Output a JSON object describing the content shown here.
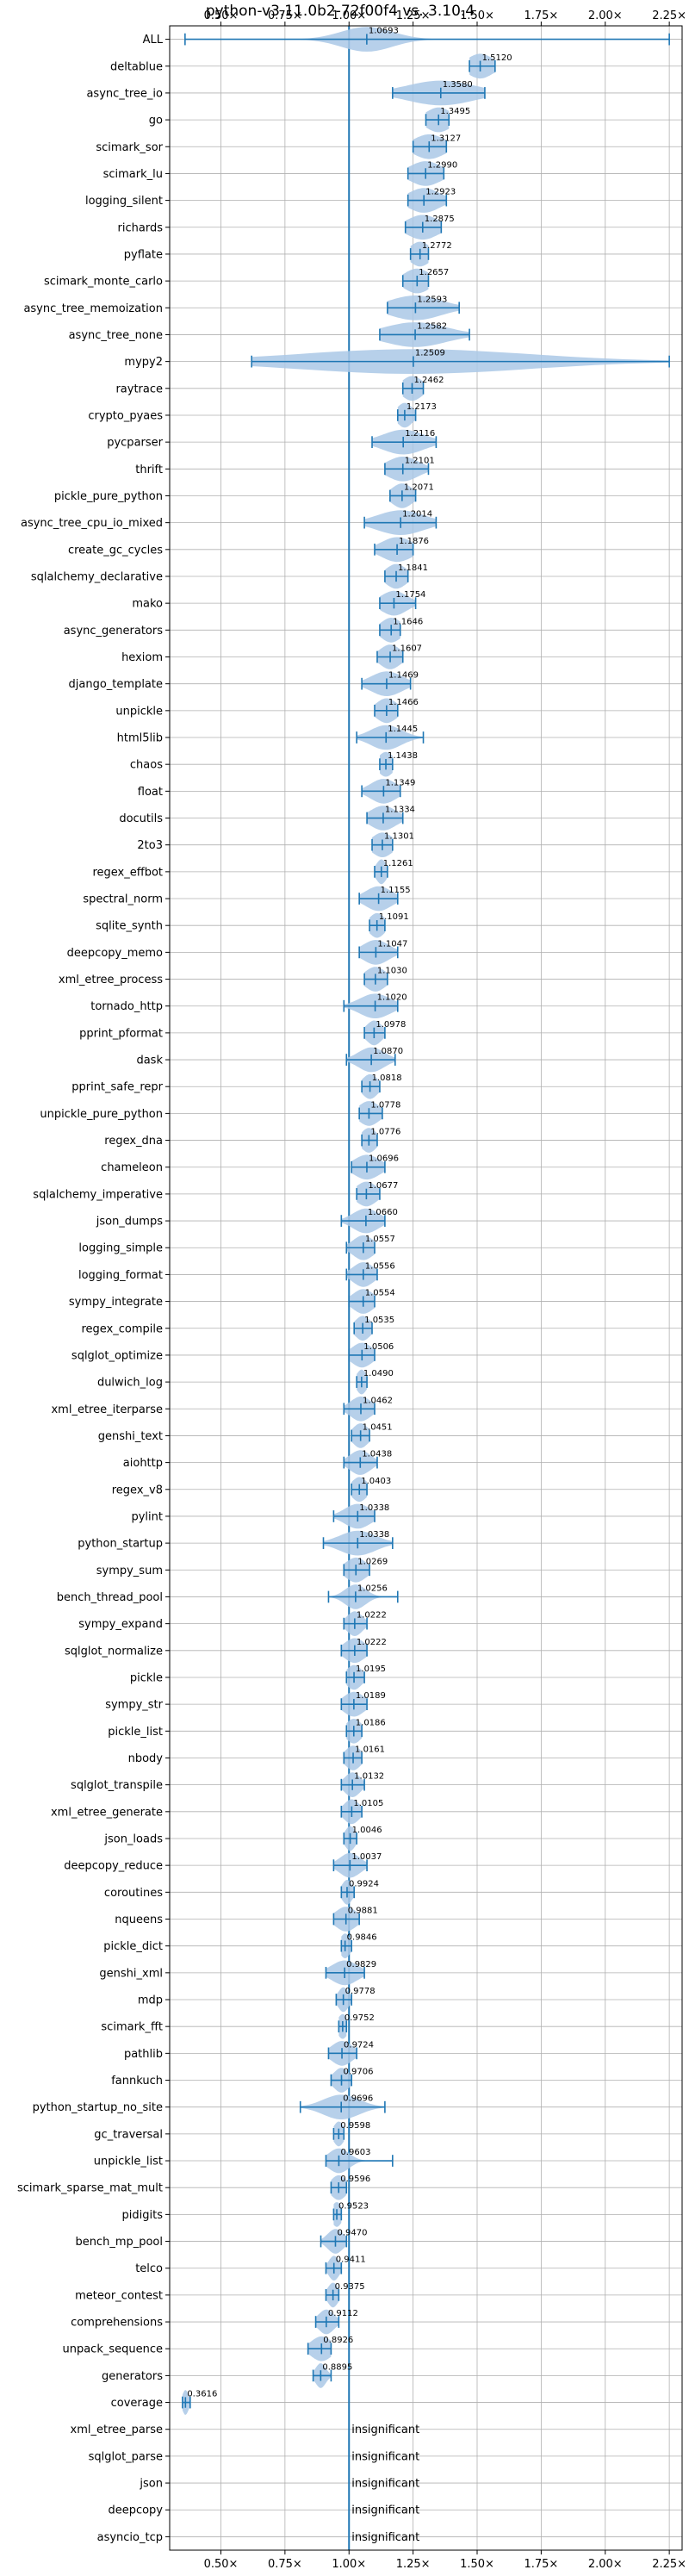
{
  "chart_data": {
    "type": "violin",
    "title": "python-v3.11.0b2-72f00f4 vs. 3.10.4",
    "xlim": [
      0.3,
      2.3
    ],
    "xticks": [
      0.5,
      0.75,
      1.0,
      1.25,
      1.5,
      1.75,
      2.0,
      2.25
    ],
    "xtick_labels": [
      "0.50×",
      "0.75×",
      "1.00×",
      "1.25×",
      "1.50×",
      "1.75×",
      "2.00×",
      "2.25×"
    ],
    "reference_line": 1.0,
    "grid": true,
    "insignificant_label": "insignificant",
    "benchmarks": [
      {
        "name": "ALL",
        "value": 1.0693,
        "label": "1.0693",
        "min": 0.36,
        "max": 2.25,
        "spread": 0.1
      },
      {
        "name": "deltablue",
        "value": 1.512,
        "label": "1.5120",
        "min": 1.47,
        "max": 1.57,
        "spread": 0.05
      },
      {
        "name": "async_tree_io",
        "value": 1.358,
        "label": "1.3580",
        "min": 1.17,
        "max": 1.53,
        "spread": 0.13
      },
      {
        "name": "go",
        "value": 1.3495,
        "label": "1.3495",
        "min": 1.3,
        "max": 1.39,
        "spread": 0.05
      },
      {
        "name": "scimark_sor",
        "value": 1.3127,
        "label": "1.3127",
        "min": 1.25,
        "max": 1.38,
        "spread": 0.06
      },
      {
        "name": "scimark_lu",
        "value": 1.299,
        "label": "1.2990",
        "min": 1.23,
        "max": 1.37,
        "spread": 0.06
      },
      {
        "name": "logging_silent",
        "value": 1.2923,
        "label": "1.2923",
        "min": 1.23,
        "max": 1.38,
        "spread": 0.06
      },
      {
        "name": "richards",
        "value": 1.2875,
        "label": "1.2875",
        "min": 1.22,
        "max": 1.36,
        "spread": 0.06
      },
      {
        "name": "pyflate",
        "value": 1.2772,
        "label": "1.2772",
        "min": 1.24,
        "max": 1.31,
        "spread": 0.04
      },
      {
        "name": "scimark_monte_carlo",
        "value": 1.2657,
        "label": "1.2657",
        "min": 1.21,
        "max": 1.31,
        "spread": 0.05
      },
      {
        "name": "async_tree_memoization",
        "value": 1.2593,
        "label": "1.2593",
        "min": 1.15,
        "max": 1.43,
        "spread": 0.1
      },
      {
        "name": "async_tree_none",
        "value": 1.2582,
        "label": "1.2582",
        "min": 1.12,
        "max": 1.47,
        "spread": 0.12
      },
      {
        "name": "mypy2",
        "value": 1.2509,
        "label": "1.2509",
        "min": 0.62,
        "max": 2.25,
        "spread": 0.45
      },
      {
        "name": "raytrace",
        "value": 1.2462,
        "label": "1.2462",
        "min": 1.21,
        "max": 1.29,
        "spread": 0.04
      },
      {
        "name": "crypto_pyaes",
        "value": 1.2173,
        "label": "1.2173",
        "min": 1.19,
        "max": 1.26,
        "spread": 0.03
      },
      {
        "name": "pycparser",
        "value": 1.2116,
        "label": "1.2116",
        "min": 1.09,
        "max": 1.34,
        "spread": 0.08
      },
      {
        "name": "thrift",
        "value": 1.2101,
        "label": "1.2101",
        "min": 1.14,
        "max": 1.31,
        "spread": 0.06
      },
      {
        "name": "pickle_pure_python",
        "value": 1.2071,
        "label": "1.2071",
        "min": 1.16,
        "max": 1.26,
        "spread": 0.04
      },
      {
        "name": "async_tree_cpu_io_mixed",
        "value": 1.2014,
        "label": "1.2014",
        "min": 1.06,
        "max": 1.34,
        "spread": 0.09
      },
      {
        "name": "create_gc_cycles",
        "value": 1.1876,
        "label": "1.1876",
        "min": 1.1,
        "max": 1.25,
        "spread": 0.06
      },
      {
        "name": "sqlalchemy_declarative",
        "value": 1.1841,
        "label": "1.1841",
        "min": 1.14,
        "max": 1.23,
        "spread": 0.04
      },
      {
        "name": "mako",
        "value": 1.1754,
        "label": "1.1754",
        "min": 1.12,
        "max": 1.26,
        "spread": 0.05
      },
      {
        "name": "async_generators",
        "value": 1.1646,
        "label": "1.1646",
        "min": 1.12,
        "max": 1.2,
        "spread": 0.04
      },
      {
        "name": "hexiom",
        "value": 1.1607,
        "label": "1.1607",
        "min": 1.11,
        "max": 1.21,
        "spread": 0.04
      },
      {
        "name": "django_template",
        "value": 1.1469,
        "label": "1.1469",
        "min": 1.05,
        "max": 1.24,
        "spread": 0.06
      },
      {
        "name": "unpickle",
        "value": 1.1466,
        "label": "1.1466",
        "min": 1.1,
        "max": 1.19,
        "spread": 0.04
      },
      {
        "name": "html5lib",
        "value": 1.1445,
        "label": "1.1445",
        "min": 1.03,
        "max": 1.29,
        "spread": 0.06
      },
      {
        "name": "chaos",
        "value": 1.1438,
        "label": "1.1438",
        "min": 1.12,
        "max": 1.17,
        "spread": 0.03
      },
      {
        "name": "float",
        "value": 1.1349,
        "label": "1.1349",
        "min": 1.05,
        "max": 1.2,
        "spread": 0.05
      },
      {
        "name": "docutils",
        "value": 1.1334,
        "label": "1.1334",
        "min": 1.07,
        "max": 1.21,
        "spread": 0.05
      },
      {
        "name": "2to3",
        "value": 1.1301,
        "label": "1.1301",
        "min": 1.09,
        "max": 1.17,
        "spread": 0.04
      },
      {
        "name": "regex_effbot",
        "value": 1.1261,
        "label": "1.1261",
        "min": 1.1,
        "max": 1.15,
        "spread": 0.02
      },
      {
        "name": "spectral_norm",
        "value": 1.1155,
        "label": "1.1155",
        "min": 1.04,
        "max": 1.19,
        "spread": 0.05
      },
      {
        "name": "sqlite_synth",
        "value": 1.1091,
        "label": "1.1091",
        "min": 1.08,
        "max": 1.14,
        "spread": 0.03
      },
      {
        "name": "deepcopy_memo",
        "value": 1.1047,
        "label": "1.1047",
        "min": 1.04,
        "max": 1.19,
        "spread": 0.05
      },
      {
        "name": "xml_etree_process",
        "value": 1.103,
        "label": "1.1030",
        "min": 1.06,
        "max": 1.15,
        "spread": 0.04
      },
      {
        "name": "tornado_http",
        "value": 1.102,
        "label": "1.1020",
        "min": 0.98,
        "max": 1.19,
        "spread": 0.06
      },
      {
        "name": "pprint_pformat",
        "value": 1.0978,
        "label": "1.0978",
        "min": 1.06,
        "max": 1.14,
        "spread": 0.03
      },
      {
        "name": "dask",
        "value": 1.087,
        "label": "1.0870",
        "min": 0.99,
        "max": 1.18,
        "spread": 0.05
      },
      {
        "name": "pprint_safe_repr",
        "value": 1.0818,
        "label": "1.0818",
        "min": 1.05,
        "max": 1.12,
        "spread": 0.03
      },
      {
        "name": "unpickle_pure_python",
        "value": 1.0778,
        "label": "1.0778",
        "min": 1.04,
        "max": 1.13,
        "spread": 0.04
      },
      {
        "name": "regex_dna",
        "value": 1.0776,
        "label": "1.0776",
        "min": 1.05,
        "max": 1.11,
        "spread": 0.03
      },
      {
        "name": "chameleon",
        "value": 1.0696,
        "label": "1.0696",
        "min": 1.01,
        "max": 1.14,
        "spread": 0.05
      },
      {
        "name": "sqlalchemy_imperative",
        "value": 1.0677,
        "label": "1.0677",
        "min": 1.03,
        "max": 1.12,
        "spread": 0.04
      },
      {
        "name": "json_dumps",
        "value": 1.066,
        "label": "1.0660",
        "min": 0.97,
        "max": 1.14,
        "spread": 0.05
      },
      {
        "name": "logging_simple",
        "value": 1.0557,
        "label": "1.0557",
        "min": 0.99,
        "max": 1.1,
        "spread": 0.04
      },
      {
        "name": "logging_format",
        "value": 1.0556,
        "label": "1.0556",
        "min": 0.99,
        "max": 1.11,
        "spread": 0.04
      },
      {
        "name": "sympy_integrate",
        "value": 1.0554,
        "label": "1.0554",
        "min": 1.0,
        "max": 1.1,
        "spread": 0.04
      },
      {
        "name": "regex_compile",
        "value": 1.0535,
        "label": "1.0535",
        "min": 1.02,
        "max": 1.09,
        "spread": 0.03
      },
      {
        "name": "sqlglot_optimize",
        "value": 1.0506,
        "label": "1.0506",
        "min": 1.0,
        "max": 1.1,
        "spread": 0.04
      },
      {
        "name": "dulwich_log",
        "value": 1.049,
        "label": "1.0490",
        "min": 1.03,
        "max": 1.07,
        "spread": 0.02
      },
      {
        "name": "xml_etree_iterparse",
        "value": 1.0462,
        "label": "1.0462",
        "min": 0.98,
        "max": 1.1,
        "spread": 0.04
      },
      {
        "name": "genshi_text",
        "value": 1.0451,
        "label": "1.0451",
        "min": 1.01,
        "max": 1.08,
        "spread": 0.03
      },
      {
        "name": "aiohttp",
        "value": 1.0438,
        "label": "1.0438",
        "min": 0.98,
        "max": 1.11,
        "spread": 0.04
      },
      {
        "name": "regex_v8",
        "value": 1.0403,
        "label": "1.0403",
        "min": 1.01,
        "max": 1.07,
        "spread": 0.03
      },
      {
        "name": "pylint",
        "value": 1.0338,
        "label": "1.0338",
        "min": 0.94,
        "max": 1.1,
        "spread": 0.05
      },
      {
        "name": "python_startup",
        "value": 1.0338,
        "label": "1.0338",
        "min": 0.9,
        "max": 1.17,
        "spread": 0.07
      },
      {
        "name": "sympy_sum",
        "value": 1.0269,
        "label": "1.0269",
        "min": 0.98,
        "max": 1.08,
        "spread": 0.04
      },
      {
        "name": "bench_thread_pool",
        "value": 1.0256,
        "label": "1.0256",
        "min": 0.92,
        "max": 1.19,
        "spread": 0.04
      },
      {
        "name": "sympy_expand",
        "value": 1.0222,
        "label": "1.0222",
        "min": 0.98,
        "max": 1.07,
        "spread": 0.03
      },
      {
        "name": "sqlglot_normalize",
        "value": 1.0222,
        "label": "1.0222",
        "min": 0.97,
        "max": 1.07,
        "spread": 0.04
      },
      {
        "name": "pickle",
        "value": 1.0195,
        "label": "1.0195",
        "min": 0.99,
        "max": 1.06,
        "spread": 0.03
      },
      {
        "name": "sympy_str",
        "value": 1.0189,
        "label": "1.0189",
        "min": 0.97,
        "max": 1.07,
        "spread": 0.04
      },
      {
        "name": "pickle_list",
        "value": 1.0186,
        "label": "1.0186",
        "min": 0.99,
        "max": 1.05,
        "spread": 0.03
      },
      {
        "name": "nbody",
        "value": 1.0161,
        "label": "1.0161",
        "min": 0.98,
        "max": 1.05,
        "spread": 0.03
      },
      {
        "name": "sqlglot_transpile",
        "value": 1.0132,
        "label": "1.0132",
        "min": 0.97,
        "max": 1.06,
        "spread": 0.03
      },
      {
        "name": "xml_etree_generate",
        "value": 1.0105,
        "label": "1.0105",
        "min": 0.97,
        "max": 1.05,
        "spread": 0.03
      },
      {
        "name": "json_loads",
        "value": 1.0046,
        "label": "1.0046",
        "min": 0.98,
        "max": 1.03,
        "spread": 0.02
      },
      {
        "name": "deepcopy_reduce",
        "value": 1.0037,
        "label": "1.0037",
        "min": 0.94,
        "max": 1.07,
        "spread": 0.04
      },
      {
        "name": "coroutines",
        "value": 0.9924,
        "label": "0.9924",
        "min": 0.97,
        "max": 1.02,
        "spread": 0.02
      },
      {
        "name": "nqueens",
        "value": 0.9881,
        "label": "0.9881",
        "min": 0.94,
        "max": 1.04,
        "spread": 0.04
      },
      {
        "name": "pickle_dict",
        "value": 0.9846,
        "label": "0.9846",
        "min": 0.97,
        "max": 1.01,
        "spread": 0.02
      },
      {
        "name": "genshi_xml",
        "value": 0.9829,
        "label": "0.9829",
        "min": 0.91,
        "max": 1.06,
        "spread": 0.05
      },
      {
        "name": "mdp",
        "value": 0.9778,
        "label": "0.9778",
        "min": 0.95,
        "max": 1.01,
        "spread": 0.02
      },
      {
        "name": "scimark_fft",
        "value": 0.9752,
        "label": "0.9752",
        "min": 0.96,
        "max": 0.99,
        "spread": 0.02
      },
      {
        "name": "pathlib",
        "value": 0.9724,
        "label": "0.9724",
        "min": 0.92,
        "max": 1.03,
        "spread": 0.04
      },
      {
        "name": "fannkuch",
        "value": 0.9706,
        "label": "0.9706",
        "min": 0.93,
        "max": 1.01,
        "spread": 0.03
      },
      {
        "name": "python_startup_no_site",
        "value": 0.9696,
        "label": "0.9696",
        "min": 0.81,
        "max": 1.14,
        "spread": 0.07
      },
      {
        "name": "gc_traversal",
        "value": 0.9598,
        "label": "0.9598",
        "min": 0.94,
        "max": 0.98,
        "spread": 0.02
      },
      {
        "name": "unpickle_list",
        "value": 0.9603,
        "label": "0.9603",
        "min": 0.91,
        "max": 1.17,
        "spread": 0.04
      },
      {
        "name": "scimark_sparse_mat_mult",
        "value": 0.9596,
        "label": "0.9596",
        "min": 0.93,
        "max": 0.99,
        "spread": 0.03
      },
      {
        "name": "pidigits",
        "value": 0.9523,
        "label": "0.9523",
        "min": 0.94,
        "max": 0.97,
        "spread": 0.02
      },
      {
        "name": "bench_mp_pool",
        "value": 0.947,
        "label": "0.9470",
        "min": 0.89,
        "max": 0.99,
        "spread": 0.03
      },
      {
        "name": "telco",
        "value": 0.9411,
        "label": "0.9411",
        "min": 0.91,
        "max": 0.97,
        "spread": 0.02
      },
      {
        "name": "meteor_contest",
        "value": 0.9375,
        "label": "0.9375",
        "min": 0.91,
        "max": 0.96,
        "spread": 0.02
      },
      {
        "name": "comprehensions",
        "value": 0.9112,
        "label": "0.9112",
        "min": 0.87,
        "max": 0.96,
        "spread": 0.03
      },
      {
        "name": "unpack_sequence",
        "value": 0.8926,
        "label": "0.8926",
        "min": 0.84,
        "max": 0.93,
        "spread": 0.04
      },
      {
        "name": "generators",
        "value": 0.8895,
        "label": "0.8895",
        "min": 0.86,
        "max": 0.93,
        "spread": 0.02
      },
      {
        "name": "coverage",
        "value": 0.3616,
        "label": "0.3616",
        "min": 0.35,
        "max": 0.38,
        "spread": 0.012
      },
      {
        "name": "xml_etree_parse",
        "value": null,
        "label": "insignificant"
      },
      {
        "name": "sqlglot_parse",
        "value": null,
        "label": "insignificant"
      },
      {
        "name": "json",
        "value": null,
        "label": "insignificant"
      },
      {
        "name": "deepcopy",
        "value": null,
        "label": "insignificant"
      },
      {
        "name": "asyncio_tcp",
        "value": null,
        "label": "insignificant"
      }
    ]
  },
  "colors": {
    "violin": "#aac8e6",
    "line": "#1f77b4",
    "grid": "#b0b0b0",
    "axis": "#000000"
  }
}
